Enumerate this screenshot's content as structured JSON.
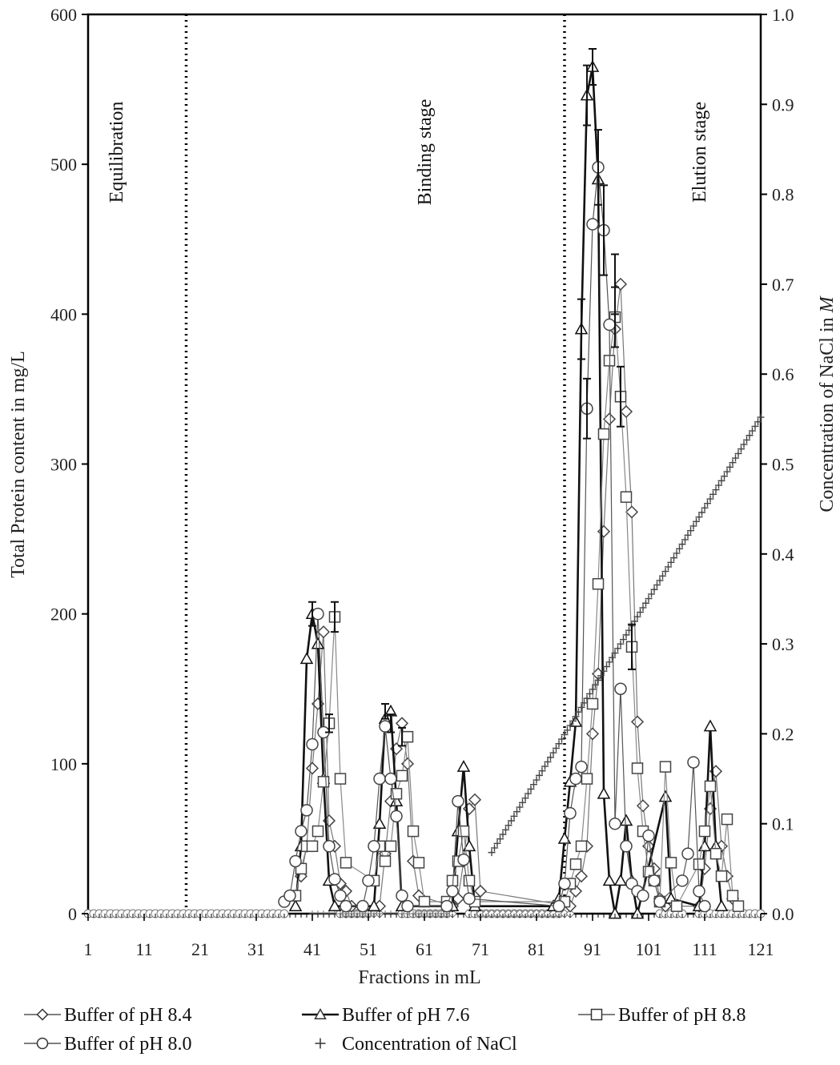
{
  "chart_data": {
    "type": "line",
    "xlabel": "Fractions in mL",
    "ylabel": "Total Protein content in mg/L",
    "y2label_prefix": "Concentration of NaCl in ",
    "y2label_unit": "M",
    "xlim": [
      1,
      121
    ],
    "ylim": [
      0,
      600
    ],
    "y2lim": [
      0,
      1.0
    ],
    "x_ticks": [
      1,
      11,
      21,
      31,
      41,
      51,
      61,
      71,
      81,
      91,
      101,
      111,
      121
    ],
    "y_ticks": [
      0,
      100,
      200,
      300,
      400,
      500,
      600
    ],
    "y2_ticks": [
      "0.0",
      "0.1",
      "0.2",
      "0.3",
      "0.4",
      "0.5",
      "0.6",
      "0.7",
      "0.8",
      "0.9",
      "1.0"
    ],
    "stage_dividers": [
      18.5,
      86
    ],
    "stages": [
      {
        "label": "Equilibration",
        "x": 6
      },
      {
        "label": "Binding stage",
        "x": 61
      },
      {
        "label": "Elution stage",
        "x": 110
      }
    ],
    "grid": false,
    "legend_position": "bottom",
    "series": [
      {
        "name": "Buffer of pH 8.4",
        "marker": "diamond",
        "color": "#777777",
        "stroke_width": 1.2,
        "points": [
          [
            39,
            25
          ],
          [
            40,
            45
          ],
          [
            41,
            97
          ],
          [
            42,
            140
          ],
          [
            43,
            188
          ],
          [
            44,
            62
          ],
          [
            45,
            45
          ],
          [
            46,
            20
          ],
          [
            47,
            15
          ],
          [
            48,
            5
          ],
          [
            53,
            5
          ],
          [
            54,
            40
          ],
          [
            55,
            75
          ],
          [
            56,
            110
          ],
          [
            57,
            127
          ],
          [
            58,
            100
          ],
          [
            59,
            35
          ],
          [
            60,
            12
          ],
          [
            66,
            5
          ],
          [
            67,
            10
          ],
          [
            68,
            35
          ],
          [
            69,
            70
          ],
          [
            70,
            76
          ],
          [
            71,
            15
          ],
          [
            87,
            5
          ],
          [
            88,
            15
          ],
          [
            89,
            25
          ],
          [
            90,
            45
          ],
          [
            91,
            120
          ],
          [
            92,
            160
          ],
          [
            93,
            255
          ],
          [
            94,
            330
          ],
          [
            95,
            390
          ],
          [
            96,
            420
          ],
          [
            97,
            335
          ],
          [
            98,
            268
          ],
          [
            99,
            128
          ],
          [
            100,
            72
          ],
          [
            101,
            45
          ],
          [
            102,
            30
          ],
          [
            103,
            10
          ],
          [
            104,
            5
          ],
          [
            110,
            5
          ],
          [
            111,
            30
          ],
          [
            112,
            70
          ],
          [
            113,
            95
          ],
          [
            114,
            45
          ],
          [
            115,
            25
          ],
          [
            116,
            10
          ]
        ]
      },
      {
        "name": "Buffer of pH 7.6",
        "marker": "triangle",
        "color": "#111111",
        "stroke_width": 2.6,
        "points": [
          [
            38,
            5
          ],
          [
            39,
            45
          ],
          [
            40,
            170
          ],
          [
            41,
            200
          ],
          [
            42,
            180
          ],
          [
            43,
            90
          ],
          [
            44,
            22
          ],
          [
            45,
            5
          ],
          [
            52,
            5
          ],
          [
            53,
            60
          ],
          [
            54,
            130
          ],
          [
            55,
            135
          ],
          [
            56,
            75
          ],
          [
            57,
            5
          ],
          [
            66,
            5
          ],
          [
            67,
            55
          ],
          [
            68,
            98
          ],
          [
            69,
            45
          ],
          [
            70,
            5
          ],
          [
            84,
            5
          ],
          [
            85,
            10
          ],
          [
            86,
            50
          ],
          [
            87,
            88
          ],
          [
            88,
            128
          ],
          [
            89,
            390
          ],
          [
            90,
            546
          ],
          [
            91,
            565
          ],
          [
            92,
            490
          ],
          [
            93,
            80
          ],
          [
            94,
            22
          ],
          [
            95,
            0
          ],
          [
            96,
            22
          ],
          [
            97,
            62
          ],
          [
            98,
            22
          ],
          [
            99,
            0
          ],
          [
            104,
            78
          ],
          [
            105,
            10
          ],
          [
            110,
            5
          ],
          [
            111,
            45
          ],
          [
            112,
            125
          ],
          [
            113,
            45
          ],
          [
            114,
            5
          ]
        ]
      },
      {
        "name": "Buffer of pH 8.8",
        "marker": "square",
        "color": "#888888",
        "stroke_width": 1.2,
        "points": [
          [
            38,
            12
          ],
          [
            39,
            30
          ],
          [
            40,
            45
          ],
          [
            41,
            45
          ],
          [
            42,
            55
          ],
          [
            43,
            88
          ],
          [
            44,
            127
          ],
          [
            45,
            198
          ],
          [
            46,
            90
          ],
          [
            47,
            34
          ],
          [
            52,
            22
          ],
          [
            53,
            45
          ],
          [
            54,
            35
          ],
          [
            55,
            45
          ],
          [
            56,
            80
          ],
          [
            57,
            92
          ],
          [
            58,
            118
          ],
          [
            59,
            55
          ],
          [
            60,
            34
          ],
          [
            61,
            8
          ],
          [
            65,
            8
          ],
          [
            66,
            22
          ],
          [
            67,
            35
          ],
          [
            68,
            55
          ],
          [
            69,
            22
          ],
          [
            70,
            8
          ],
          [
            86,
            8
          ],
          [
            87,
            20
          ],
          [
            88,
            33
          ],
          [
            89,
            45
          ],
          [
            90,
            90
          ],
          [
            91,
            140
          ],
          [
            92,
            220
          ],
          [
            93,
            320
          ],
          [
            94,
            369
          ],
          [
            95,
            398
          ],
          [
            96,
            345
          ],
          [
            97,
            278
          ],
          [
            98,
            178
          ],
          [
            99,
            97
          ],
          [
            100,
            55
          ],
          [
            101,
            28
          ],
          [
            102,
            22
          ],
          [
            103,
            8
          ],
          [
            104,
            98
          ],
          [
            105,
            34
          ],
          [
            106,
            5
          ],
          [
            110,
            33
          ],
          [
            111,
            55
          ],
          [
            112,
            85
          ],
          [
            113,
            40
          ],
          [
            114,
            25
          ],
          [
            115,
            63
          ],
          [
            116,
            12
          ],
          [
            117,
            5
          ]
        ]
      },
      {
        "name": "Buffer of pH 8.0",
        "marker": "circle",
        "color": "#555555",
        "stroke_width": 1.2,
        "points": [
          [
            36,
            8
          ],
          [
            37,
            12
          ],
          [
            38,
            35
          ],
          [
            39,
            55
          ],
          [
            40,
            69
          ],
          [
            41,
            113
          ],
          [
            42,
            200
          ],
          [
            43,
            121
          ],
          [
            44,
            45
          ],
          [
            45,
            23
          ],
          [
            46,
            12
          ],
          [
            47,
            5
          ],
          [
            50,
            5
          ],
          [
            51,
            22
          ],
          [
            52,
            45
          ],
          [
            53,
            90
          ],
          [
            54,
            125
          ],
          [
            55,
            90
          ],
          [
            56,
            65
          ],
          [
            57,
            12
          ],
          [
            58,
            5
          ],
          [
            65,
            5
          ],
          [
            66,
            15
          ],
          [
            67,
            75
          ],
          [
            68,
            36
          ],
          [
            69,
            10
          ],
          [
            85,
            5
          ],
          [
            86,
            20
          ],
          [
            87,
            67
          ],
          [
            88,
            90
          ],
          [
            89,
            98
          ],
          [
            90,
            337
          ],
          [
            91,
            460
          ],
          [
            92,
            498
          ],
          [
            93,
            456
          ],
          [
            94,
            393
          ],
          [
            95,
            60
          ],
          [
            96,
            150
          ],
          [
            97,
            45
          ],
          [
            98,
            20
          ],
          [
            99,
            15
          ],
          [
            100,
            12
          ],
          [
            101,
            52
          ],
          [
            102,
            22
          ],
          [
            103,
            8
          ],
          [
            107,
            22
          ],
          [
            108,
            40
          ],
          [
            109,
            101
          ],
          [
            110,
            15
          ],
          [
            111,
            5
          ]
        ]
      },
      {
        "name": "Concentration of NaCl",
        "marker": "plus",
        "color": "#444444",
        "axis": "right",
        "start_x": 73,
        "end_x": 121,
        "start_y": 0.068,
        "end_y": 0.552
      }
    ],
    "zero_markers": [
      {
        "marker": "circle",
        "ranges": [
          [
            1,
            36
          ],
          [
            46,
            51
          ],
          [
            57,
            65
          ],
          [
            69,
            85
          ],
          [
            103,
            107
          ],
          [
            110,
            121
          ]
        ]
      },
      {
        "marker": "diamond",
        "ranges": [
          [
            47,
            53
          ],
          [
            60,
            66
          ],
          [
            71,
            87
          ]
        ]
      },
      {
        "marker": "plus",
        "ranges": [
          [
            41,
            65
          ]
        ]
      }
    ],
    "error_bars": [
      {
        "x": 41,
        "y": 200,
        "e": 8
      },
      {
        "x": 45,
        "y": 198,
        "e": 10
      },
      {
        "x": 44,
        "y": 127,
        "e": 6
      },
      {
        "x": 54,
        "y": 135,
        "e": 5
      },
      {
        "x": 55,
        "y": 127,
        "e": 6
      },
      {
        "x": 57,
        "y": 118,
        "e": 6
      },
      {
        "x": 90,
        "y": 546,
        "e": 20
      },
      {
        "x": 91,
        "y": 565,
        "e": 12
      },
      {
        "x": 92,
        "y": 498,
        "e": 25
      },
      {
        "x": 93,
        "y": 456,
        "e": 30
      },
      {
        "x": 89,
        "y": 390,
        "e": 20
      },
      {
        "x": 95,
        "y": 420,
        "e": 20
      },
      {
        "x": 95,
        "y": 398,
        "e": 20
      },
      {
        "x": 96,
        "y": 345,
        "e": 20
      },
      {
        "x": 98,
        "y": 178,
        "e": 15
      },
      {
        "x": 90,
        "y": 337,
        "e": 20
      }
    ]
  },
  "legend": {
    "items": [
      {
        "label": "Buffer of pH 8.4",
        "marker": "diamond",
        "line": "#555555"
      },
      {
        "label": "Buffer of pH 7.6",
        "marker": "triangle",
        "line": "#111111"
      },
      {
        "label": "Buffer of pH 8.8",
        "marker": "square",
        "line": "#555555"
      },
      {
        "label": "Buffer of pH 8.0",
        "marker": "circle",
        "line": "#555555"
      },
      {
        "label": "Concentration of NaCl",
        "marker": "plus",
        "line": ""
      }
    ]
  }
}
